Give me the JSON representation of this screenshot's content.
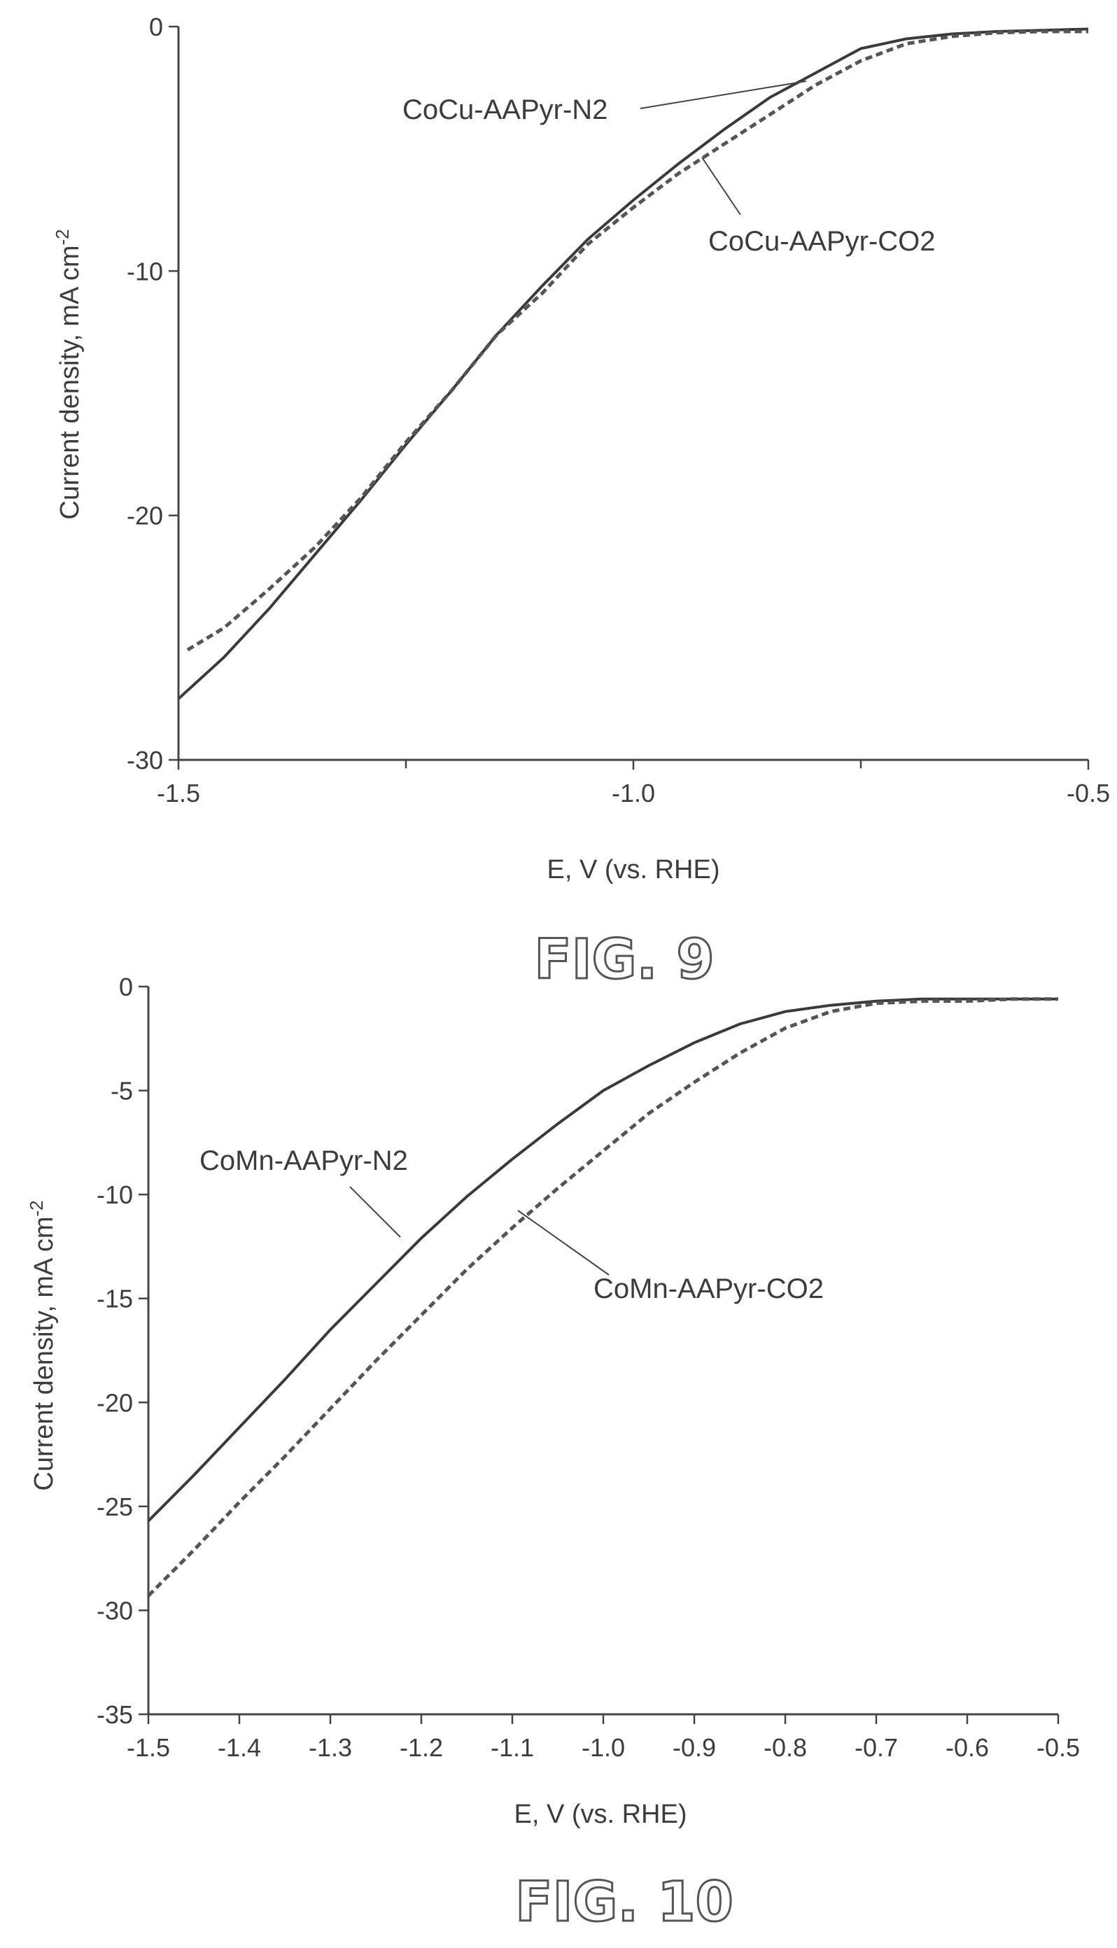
{
  "chart_data": [
    {
      "type": "line",
      "title": "",
      "caption": "FIG. 9",
      "xlabel": "E, V (vs. RHE)",
      "ylabel": "Current density, mA cm",
      "ylabel_superscript": "-2",
      "xlim": [
        -1.5,
        -0.5
      ],
      "ylim": [
        -30,
        0
      ],
      "x_ticks": [
        "-1.5",
        "-1.0",
        "-0.5"
      ],
      "x_tick_values": [
        -1.5,
        -1.0,
        -0.5
      ],
      "x_minor_ticks": [
        -1.25,
        -0.75
      ],
      "y_ticks": [
        "0",
        "-10",
        "-20",
        "-30"
      ],
      "y_tick_values": [
        0,
        -10,
        -20,
        -30
      ],
      "grid": false,
      "series": [
        {
          "name": "CoCu-AAPyr-N2",
          "style": "solid",
          "x": [
            -1.5,
            -1.45,
            -1.4,
            -1.35,
            -1.3,
            -1.25,
            -1.2,
            -1.15,
            -1.1,
            -1.05,
            -1.0,
            -0.95,
            -0.9,
            -0.85,
            -0.8,
            -0.75,
            -0.7,
            -0.65,
            -0.6,
            -0.55,
            -0.5
          ],
          "y": [
            -27.5,
            -25.8,
            -23.8,
            -21.6,
            -19.4,
            -17.1,
            -14.9,
            -12.6,
            -10.6,
            -8.7,
            -7.1,
            -5.6,
            -4.2,
            -2.9,
            -1.9,
            -0.9,
            -0.5,
            -0.3,
            -0.2,
            -0.15,
            -0.1
          ]
        },
        {
          "name": "CoCu-AAPyr-CO2",
          "style": "dashed",
          "x": [
            -1.49,
            -1.45,
            -1.4,
            -1.35,
            -1.3,
            -1.25,
            -1.2,
            -1.15,
            -1.1,
            -1.05,
            -1.0,
            -0.95,
            -0.9,
            -0.85,
            -0.8,
            -0.75,
            -0.7,
            -0.65,
            -0.6,
            -0.55,
            -0.5
          ],
          "y": [
            -25.5,
            -24.6,
            -23.0,
            -21.3,
            -19.3,
            -17.0,
            -14.9,
            -12.6,
            -10.9,
            -8.9,
            -7.4,
            -6.0,
            -4.8,
            -3.6,
            -2.4,
            -1.4,
            -0.7,
            -0.4,
            -0.25,
            -0.2,
            -0.2
          ]
        }
      ],
      "annotations": [
        {
          "text": "CoCu-AAPyr-N2",
          "points_to": [
            -0.82,
            -2.1
          ]
        },
        {
          "text": "CoCu-AAPyr-CO2",
          "points_to": [
            -0.87,
            -5.4
          ]
        }
      ]
    },
    {
      "type": "line",
      "title": "",
      "caption": "FIG. 10",
      "xlabel": "E, V (vs. RHE)",
      "ylabel": "Current density, mA cm",
      "ylabel_superscript": "-2",
      "xlim": [
        -1.5,
        -0.5
      ],
      "ylim": [
        -35,
        0
      ],
      "x_ticks": [
        "-1.5",
        "-1.4",
        "-1.3",
        "-1.2",
        "-1.1",
        "-1.0",
        "-0.9",
        "-0.8",
        "-0.7",
        "-0.6",
        "-0.5"
      ],
      "x_tick_values": [
        -1.5,
        -1.4,
        -1.3,
        -1.2,
        -1.1,
        -1.0,
        -0.9,
        -0.8,
        -0.7,
        -0.6,
        -0.5
      ],
      "y_ticks": [
        "0",
        "-5",
        "-10",
        "-15",
        "-20",
        "-25",
        "-30",
        "-35"
      ],
      "y_tick_values": [
        0,
        -5,
        -10,
        -15,
        -20,
        -25,
        -30,
        -35
      ],
      "grid": false,
      "series": [
        {
          "name": "CoMn-AAPyr-N2",
          "style": "solid",
          "x": [
            -1.5,
            -1.45,
            -1.4,
            -1.35,
            -1.3,
            -1.25,
            -1.2,
            -1.15,
            -1.1,
            -1.05,
            -1.0,
            -0.95,
            -0.9,
            -0.85,
            -0.8,
            -0.75,
            -0.7,
            -0.65,
            -0.6,
            -0.55,
            -0.5
          ],
          "y": [
            -25.7,
            -23.5,
            -21.2,
            -18.9,
            -16.5,
            -14.3,
            -12.1,
            -10.1,
            -8.3,
            -6.6,
            -5.0,
            -3.8,
            -2.7,
            -1.8,
            -1.2,
            -0.9,
            -0.7,
            -0.6,
            -0.6,
            -0.6,
            -0.6
          ]
        },
        {
          "name": "CoMn-AAPyr-CO2",
          "style": "dashed",
          "x": [
            -1.5,
            -1.45,
            -1.4,
            -1.35,
            -1.3,
            -1.25,
            -1.2,
            -1.15,
            -1.1,
            -1.05,
            -1.0,
            -0.95,
            -0.9,
            -0.85,
            -0.8,
            -0.75,
            -0.7,
            -0.65,
            -0.6,
            -0.55,
            -0.5
          ],
          "y": [
            -29.3,
            -27.1,
            -24.8,
            -22.6,
            -20.3,
            -18.0,
            -15.8,
            -13.6,
            -11.6,
            -9.7,
            -7.9,
            -6.1,
            -4.6,
            -3.2,
            -2.0,
            -1.2,
            -0.8,
            -0.7,
            -0.7,
            -0.6,
            -0.6
          ]
        }
      ],
      "annotations": [
        {
          "text": "CoMn-AAPyr-N2",
          "points_to": [
            -1.21,
            -12.8
          ]
        },
        {
          "text": "CoMn-AAPyr-CO2",
          "points_to": [
            -1.09,
            -10.8
          ]
        }
      ]
    }
  ]
}
